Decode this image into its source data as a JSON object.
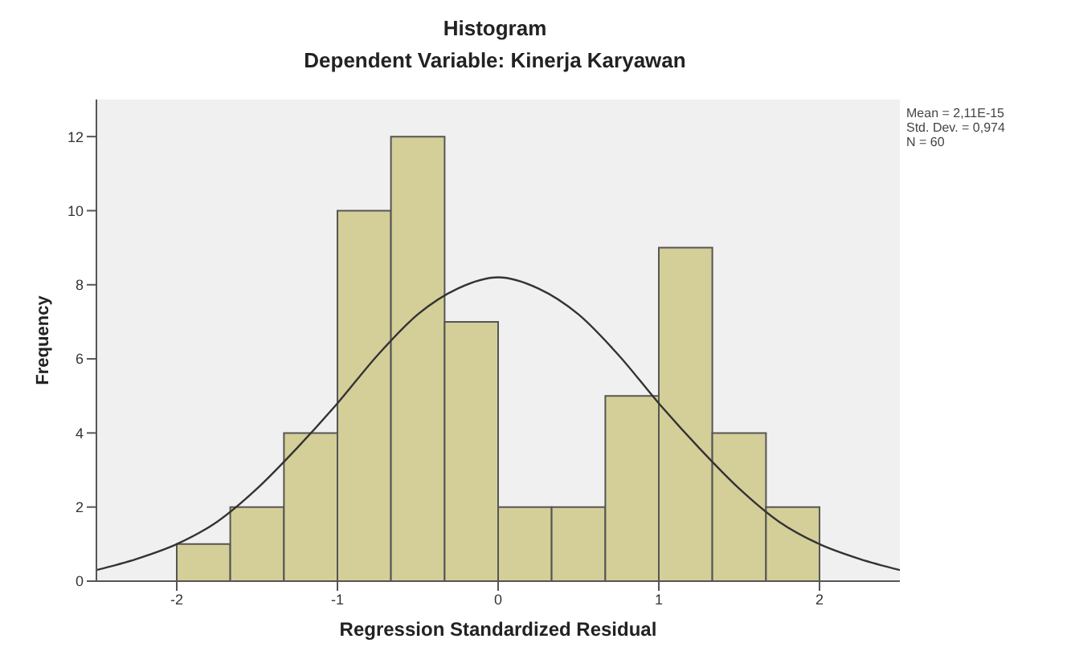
{
  "chart_data": {
    "type": "histogram",
    "title": "Histogram",
    "subtitle": "Dependent Variable: Kinerja Karyawan",
    "xlabel": "Regression Standardized Residual",
    "ylabel": "Frequency",
    "bins": [
      -2,
      -1.667,
      -1.333,
      -1,
      -0.667,
      -0.333,
      0,
      0.333,
      0.667,
      1,
      1.333,
      1.667,
      2
    ],
    "values": [
      1,
      2,
      4,
      10,
      12,
      7,
      2,
      2,
      5,
      9,
      4,
      2
    ],
    "color": "#d4cf98",
    "series": [
      {
        "type": "line",
        "color": "#333333",
        "x": [
          -2.5,
          -2.25,
          -2,
          -1.75,
          -1.5,
          -1.25,
          -1,
          -0.75,
          -0.5,
          -0.25,
          0,
          0.25,
          0.5,
          0.75,
          1,
          1.25,
          1.5,
          1.75,
          2,
          2.25,
          2.5
        ],
        "values": [
          0.3,
          0.6,
          1.0,
          1.6,
          2.5,
          3.6,
          4.8,
          6.1,
          7.2,
          7.9,
          8.2,
          7.9,
          7.2,
          6.1,
          4.8,
          3.6,
          2.5,
          1.6,
          1.0,
          0.6,
          0.3
        ]
      }
    ],
    "xlim": [
      -2.5,
      2.5
    ],
    "xticks": [
      -2,
      -1,
      0,
      1,
      2
    ],
    "ylim": [
      0,
      13
    ],
    "yticks": [
      0,
      2,
      4,
      6,
      8,
      10,
      12
    ],
    "annotations": [
      "Mean = 2,11E-15",
      "Std. Dev. = 0,974",
      "N = 60"
    ],
    "grid": false,
    "marker": "none"
  }
}
